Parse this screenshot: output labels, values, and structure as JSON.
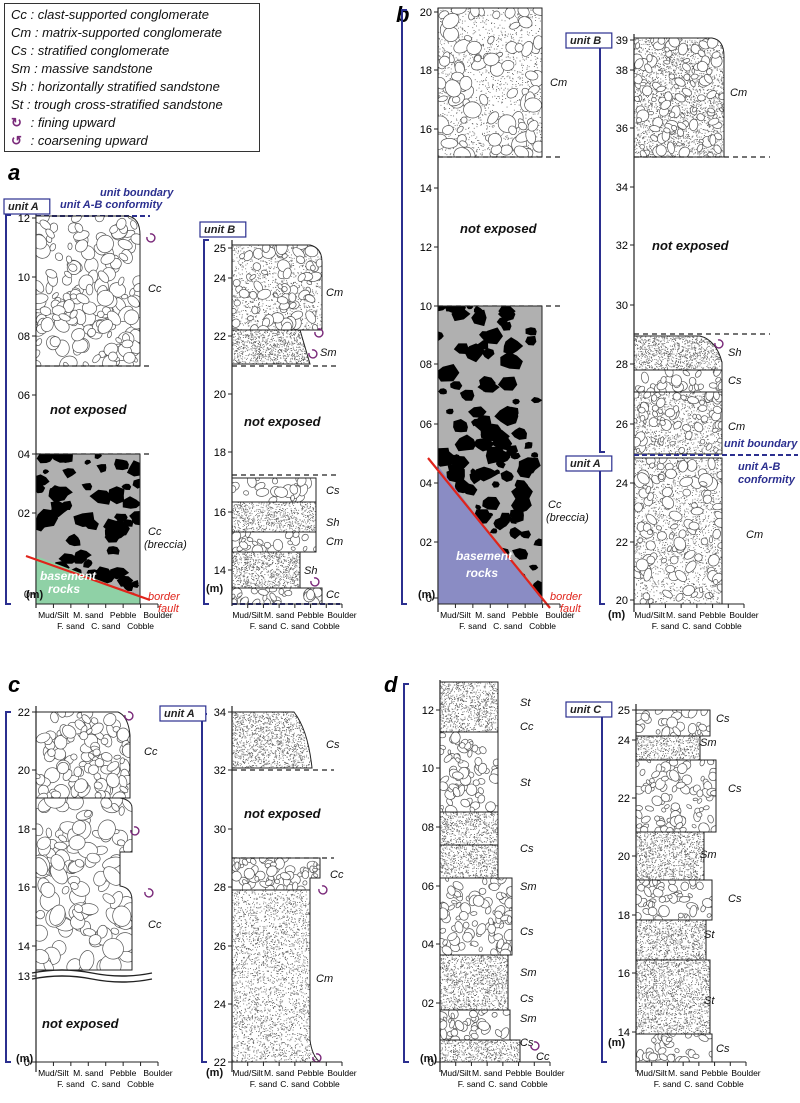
{
  "legend": [
    {
      "code": "Cc",
      "desc": "clast-supported conglomerate"
    },
    {
      "code": "Cm",
      "desc": "matrix-supported conglomerate"
    },
    {
      "code": "Cs",
      "desc": "stratified conglomerate"
    },
    {
      "code": "Sm",
      "desc": "massive sandstone"
    },
    {
      "code": "Sh",
      "desc": "horizontally stratified sandstone"
    },
    {
      "code": "St",
      "desc": "trough cross-stratified sandstone"
    },
    {
      "code": "",
      "desc": "fining upward"
    },
    {
      "code": "",
      "desc": "coarsening upward"
    }
  ],
  "legend_sep": " : ",
  "grain_axis": {
    "top": [
      "Mud/Silt",
      "M. sand",
      "Pebble",
      "Boulder"
    ],
    "bottom": [
      "F. sand",
      "C. sand",
      "Cobble"
    ]
  },
  "colors": {
    "scale": "#2b2f8f",
    "fault": "#e0241b",
    "basement_a": "#8fd1a6",
    "basement_b": "#8a8cc4",
    "breccia_fill": "#b0b0b0",
    "unit_text": "#2b2f8f",
    "symbol": "#7a2a7a"
  },
  "panels": [
    {
      "label": "a",
      "columns": [
        {
          "unit": "unit A",
          "ticks": [
            "12",
            "10",
            "08",
            "06",
            "04",
            "02",
            "0"
          ],
          "unit_text": "(m)",
          "notes": [
            "unit boundary",
            "unit A-B conformity"
          ],
          "not_exposed": "not exposed",
          "facies": [
            "Cc",
            "Cc",
            "(breccia)"
          ],
          "basement": [
            "basement",
            "rocks"
          ],
          "fault": [
            "border",
            "fault"
          ]
        },
        {
          "unit": "unit B",
          "ticks": [
            "25",
            "24",
            "22",
            "20",
            "18",
            "16",
            "14"
          ],
          "unit_text": "(m)",
          "not_exposed": "not exposed",
          "facies": [
            "Cm",
            "Sm",
            "Cs",
            "Sh",
            "Cm",
            "Sh",
            "Cc"
          ]
        }
      ]
    },
    {
      "label": "b",
      "columns": [
        {
          "ticks": [
            "20",
            "18",
            "16",
            "14",
            "12",
            "10",
            "08",
            "06",
            "04",
            "02",
            "0"
          ],
          "unit_text": "(m)",
          "not_exposed": "not exposed",
          "facies": [
            "Cm",
            "Cc",
            "(breccia)"
          ],
          "basement": [
            "basement",
            "rocks"
          ],
          "fault": [
            "border",
            "fault"
          ]
        },
        {
          "unit": "unit B",
          "unit2": "unit A",
          "ticks": [
            "39",
            "38",
            "36",
            "34",
            "32",
            "30",
            "28",
            "26",
            "24",
            "22",
            "20"
          ],
          "unit_text": "(m)",
          "notes": [
            "unit boundary",
            "unit A-B",
            "conformity"
          ],
          "not_exposed": "not exposed",
          "facies": [
            "Cm",
            "Sh",
            "Cs",
            "Cm",
            "Cm"
          ]
        }
      ]
    },
    {
      "label": "c",
      "columns": [
        {
          "ticks": [
            "22",
            "20",
            "18",
            "16",
            "14",
            "13",
            "0"
          ],
          "unit_text": "(m)",
          "not_exposed": "not exposed",
          "facies": [
            "Cc",
            "Cc"
          ]
        },
        {
          "unit": "unit A",
          "ticks": [
            "34",
            "32",
            "30",
            "28",
            "26",
            "24",
            "22"
          ],
          "unit_text": "(m)",
          "not_exposed": "not exposed",
          "facies": [
            "Cs",
            "Cc",
            "Cm"
          ]
        }
      ]
    },
    {
      "label": "d",
      "columns": [
        {
          "ticks": [
            "12",
            "10",
            "08",
            "06",
            "04",
            "02",
            "0"
          ],
          "unit_text": "(m)",
          "facies": [
            "St",
            "Cc",
            "St",
            "Cs",
            "Sm",
            "Cs",
            "Sm",
            "Cs",
            "Sm",
            "Cs",
            "Cc"
          ]
        },
        {
          "unit": "unit C",
          "ticks": [
            "25",
            "24",
            "22",
            "20",
            "18",
            "16",
            "14"
          ],
          "unit_text": "(m)",
          "facies": [
            "Cs",
            "Sm",
            "Cs",
            "Sm",
            "Cs",
            "St",
            "St",
            "Cs"
          ]
        }
      ]
    }
  ]
}
